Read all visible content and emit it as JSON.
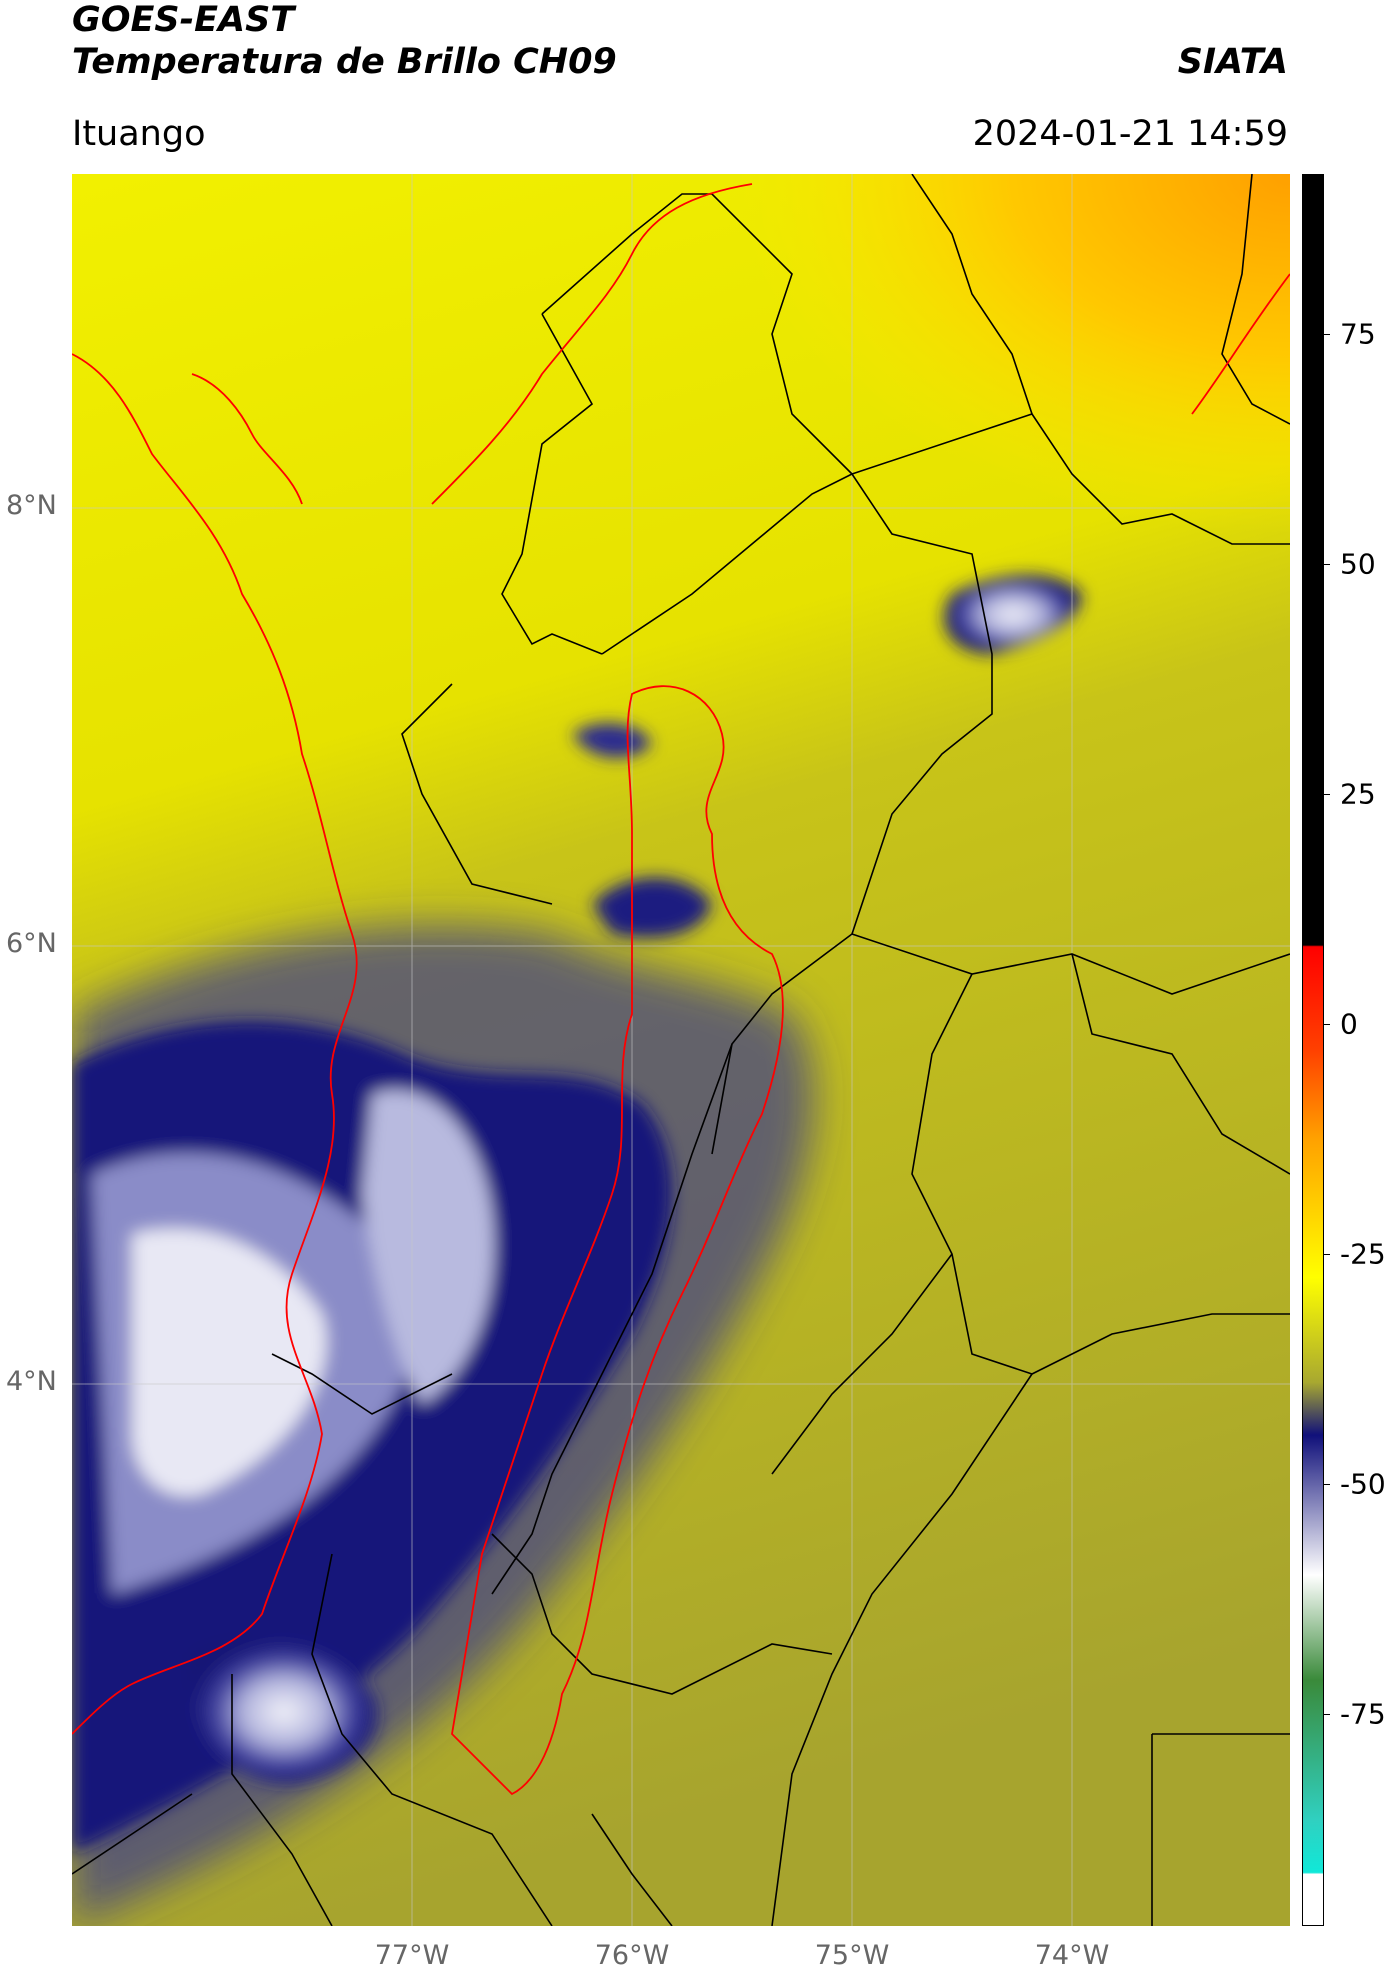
{
  "header": {
    "satellite": "GOES-EAST",
    "product": "Temperatura de Brillo CH09",
    "agency": "SIATA",
    "location": "Ituango",
    "datetime": "2024-01-21 14:59"
  },
  "map": {
    "latitude_labels": [
      "8°N",
      "6°N",
      "4°N"
    ],
    "longitude_labels": [
      "77°W",
      "76°W",
      "75°W",
      "74°W"
    ]
  },
  "colorbar": {
    "ticks": [
      "75",
      "50",
      "25",
      "0",
      "-25",
      "-50",
      "-75"
    ],
    "colors": {
      "black": "#000000",
      "red": "#ff0000",
      "orange": "#ffa000",
      "yellow": "#ffff00",
      "olive": "#a8a830",
      "navy": "#10107a",
      "white": "#ffffff",
      "green": "#3a8a3a",
      "cyan": "#10e8d8"
    }
  }
}
